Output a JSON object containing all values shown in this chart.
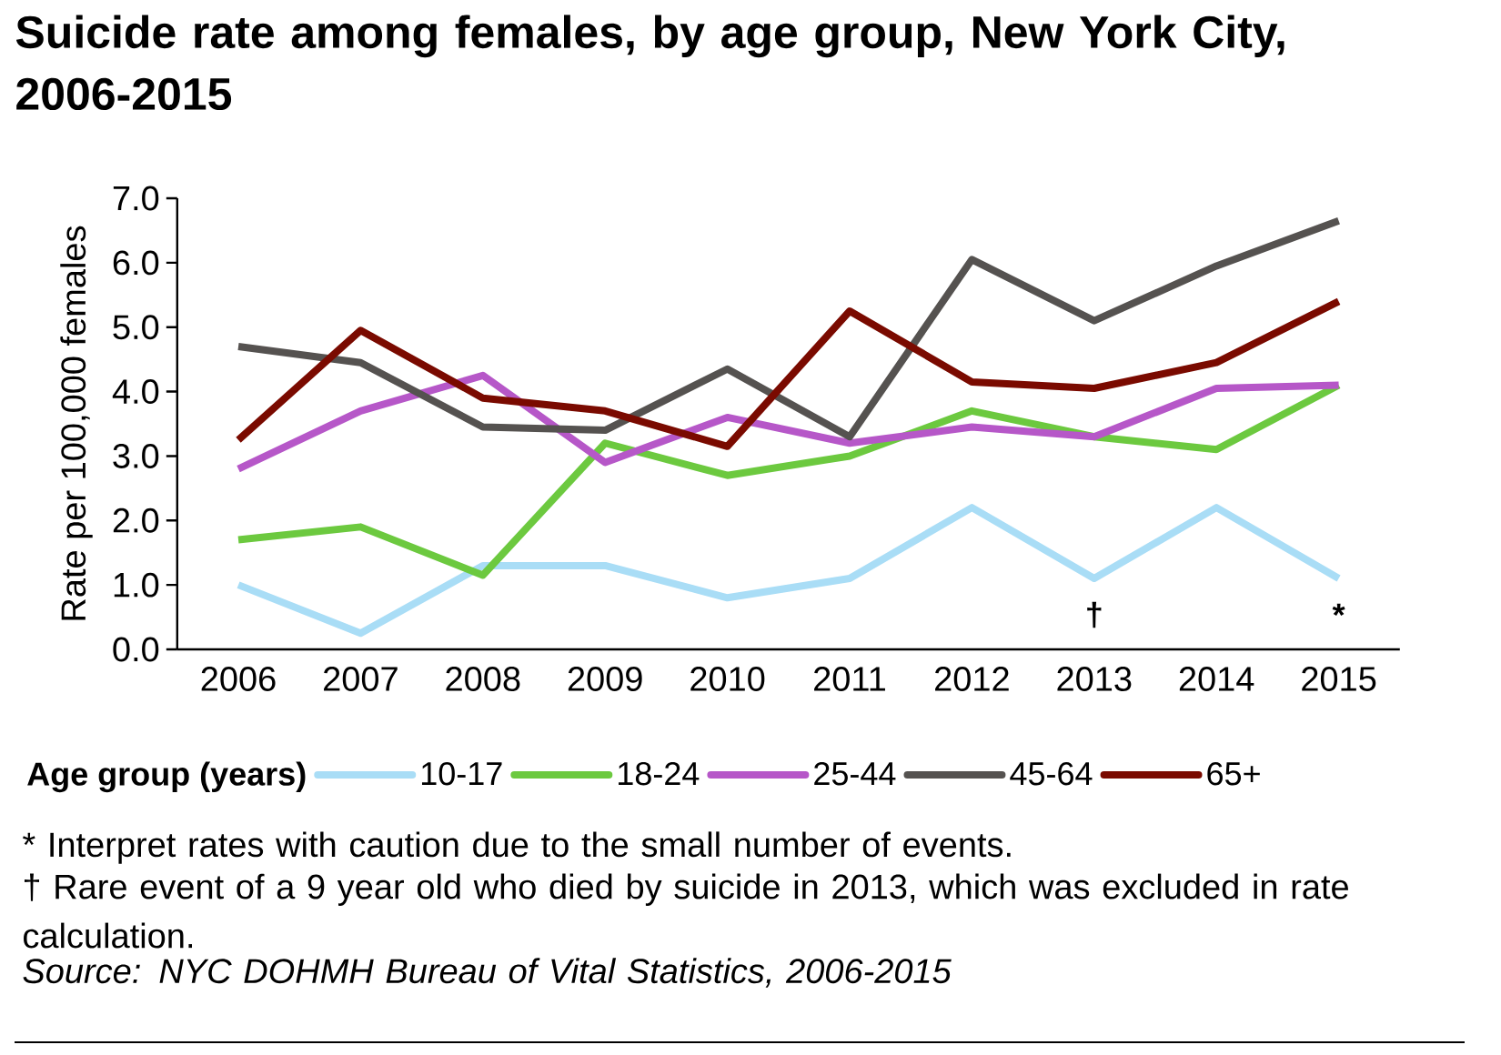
{
  "chart_data": {
    "type": "line",
    "title": "Suicide rate among females, by age group, New York City, 2006-2015",
    "ylabel": "Rate per 100,000 females",
    "legend_title": "Age group (years)",
    "categories": [
      "2006",
      "2007",
      "2008",
      "2009",
      "2010",
      "2011",
      "2012",
      "2013",
      "2014",
      "2015"
    ],
    "series": [
      {
        "name": "10-17",
        "color": "#a9ddf6",
        "values": [
          1.0,
          0.25,
          1.3,
          1.3,
          0.8,
          1.1,
          2.2,
          1.1,
          2.2,
          1.1
        ]
      },
      {
        "name": "18-24",
        "color": "#6cc93f",
        "values": [
          1.7,
          1.9,
          1.15,
          3.2,
          2.7,
          3.0,
          3.7,
          3.3,
          3.1,
          4.1
        ]
      },
      {
        "name": "25-44",
        "color": "#b657c8",
        "values": [
          2.8,
          3.7,
          4.25,
          2.9,
          3.6,
          3.2,
          3.45,
          3.3,
          4.05,
          4.1
        ]
      },
      {
        "name": "45-64",
        "color": "#555250",
        "values": [
          4.7,
          4.45,
          3.45,
          3.4,
          4.35,
          3.3,
          6.05,
          5.1,
          5.95,
          6.65
        ]
      },
      {
        "name": "65+",
        "color": "#7a0a00",
        "values": [
          3.25,
          4.95,
          3.9,
          3.7,
          3.15,
          5.25,
          4.15,
          4.05,
          4.45,
          5.4
        ]
      }
    ],
    "ylim": [
      0,
      7
    ],
    "yticks": [
      {
        "value": 0,
        "label": "0.0"
      },
      {
        "value": 1,
        "label": "1.0"
      },
      {
        "value": 2,
        "label": "2.0"
      },
      {
        "value": 3,
        "label": "3.0"
      },
      {
        "value": 4,
        "label": "4.0"
      },
      {
        "value": 5,
        "label": "5.0"
      },
      {
        "value": 6,
        "label": "6.0"
      },
      {
        "value": 7,
        "label": "7.0"
      }
    ],
    "legend": "bottom",
    "line_style": "solid",
    "annotations": [
      {
        "text": "†",
        "x": "2013",
        "y": 1.1
      },
      {
        "text": "*",
        "x": "2015",
        "y": 1.1
      },
      "* Interpret rates with caution due to the small number of events.",
      "† Rare event of a 9 year old who died by suicide in 2013, which was excluded in rate calculation.",
      "*Source: NYC DOHMH Bureau of Vital Statistics, 2006-2015*"
    ]
  }
}
